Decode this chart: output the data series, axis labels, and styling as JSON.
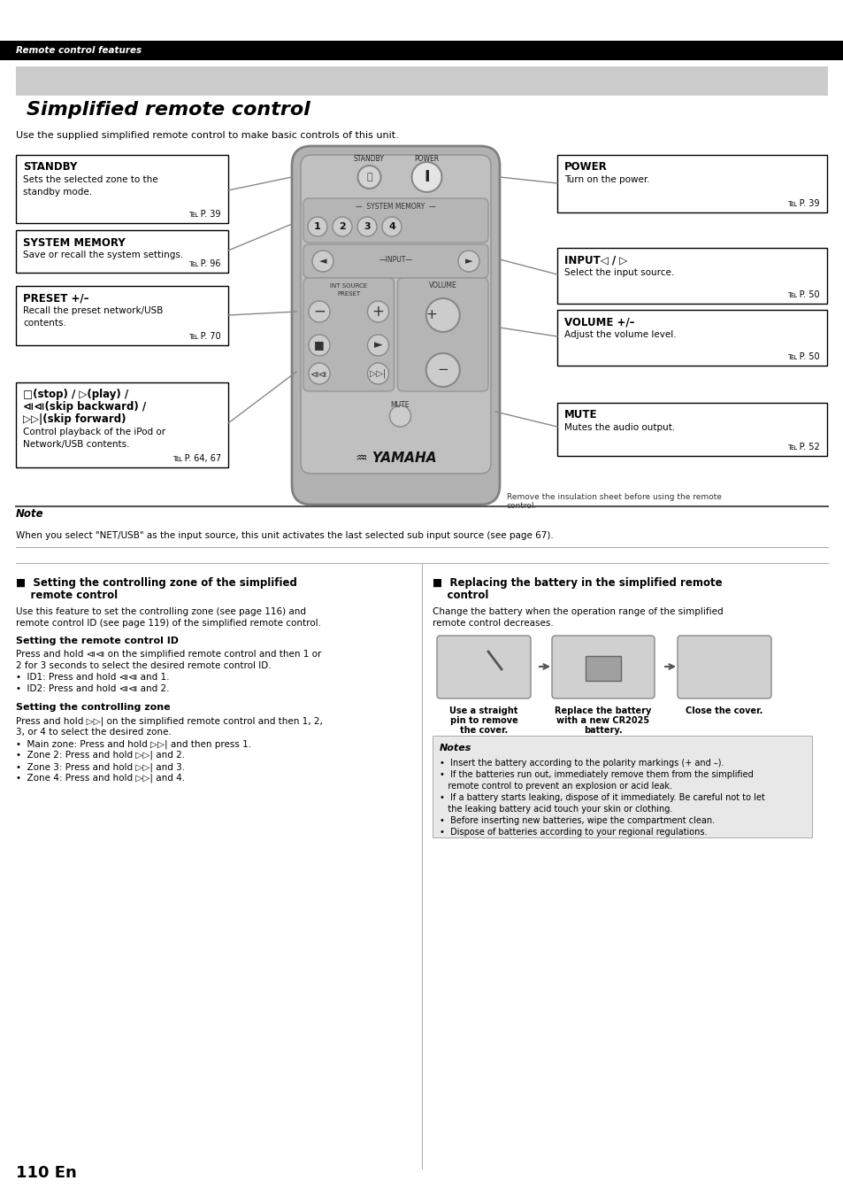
{
  "page_bg": "#ffffff",
  "header_bg": "#000000",
  "header_text": "Remote control features",
  "header_text_color": "#ffffff",
  "title_bg": "#cccccc",
  "title_text": "Simplified remote control",
  "intro_text": "Use the supplied simplified remote control to make basic controls of this unit.",
  "note_text": "When you select \"NET/USB\" as the input source, this unit activates the last selected sub input source (see page 67).",
  "remote_caption": "Remove the insulation sheet before using the remote\ncontrol.",
  "section1_title": "■  Setting the controlling zone of the simplified\n    remote control",
  "section1_intro": "Use this feature to set the controlling zone (see page 116) and\nremote control ID (see page 119) of the simplified remote control.",
  "section1_sub1": "Setting the remote control ID",
  "section1_text1": "Press and hold ⧏⧏ on the simplified remote control and then 1 or\n2 for 3 seconds to select the desired remote control ID.\n•  ID1: Press and hold ⧏⧏ and 1.\n•  ID2: Press and hold ⧏⧏ and 2.",
  "section1_sub2": "Setting the controlling zone",
  "section1_text2": "Press and hold ▷▷| on the simplified remote control and then 1, 2,\n3, or 4 to select the desired zone.\n•  Main zone: Press and hold ▷▷| and then press 1.\n•  Zone 2: Press and hold ▷▷| and 2.\n•  Zone 3: Press and hold ▷▷| and 3.\n•  Zone 4: Press and hold ▷▷| and 4.",
  "section2_title": "■  Replacing the battery in the simplified remote\n    control",
  "section2_text": "Change the battery when the operation range of the simplified\nremote control decreases.",
  "bat_label1_line1": "Use a straight",
  "bat_label1_line2": "pin to remove",
  "bat_label1_line3": "the cover.",
  "bat_label2_line1": "Replace the battery",
  "bat_label2_line2": "with a new CR2025",
  "bat_label2_line3": "battery.",
  "bat_label3_line1": "Close the cover.",
  "notes_title": "Notes",
  "notes_lines": [
    "•  Insert the battery according to the polarity markings (+ and –).",
    "•  If the batteries run out, immediately remove them from the simplified",
    "   remote control to prevent an explosion or acid leak.",
    "•  If a battery starts leaking, dispose of it immediately. Be careful not to let",
    "   the leaking battery acid touch your skin or clothing.",
    "•  Before inserting new batteries, wipe the compartment clean.",
    "•  Dispose of batteries according to your regional regulations."
  ],
  "page_number": "110 En"
}
